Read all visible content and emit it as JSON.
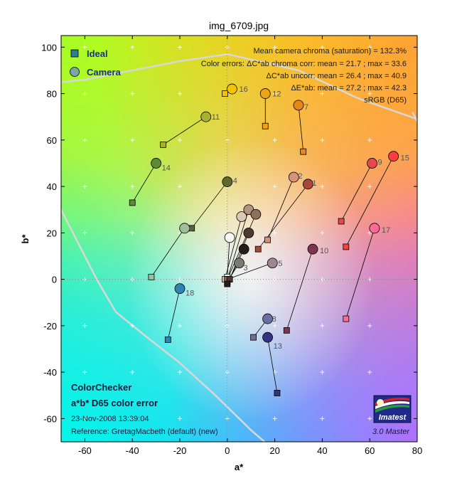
{
  "page_title": "img_6709.jpg",
  "chart_data": {
    "type": "scatter",
    "title": "img_6709.jpg",
    "xlabel": "a*",
    "ylabel": "b*",
    "xlim": [
      -70,
      80
    ],
    "ylim": [
      -70,
      105
    ],
    "xticks": [
      -60,
      -40,
      -20,
      0,
      20,
      40,
      60,
      80
    ],
    "yticks": [
      -60,
      -40,
      -20,
      0,
      20,
      40,
      60,
      80,
      100
    ],
    "grid": "cross-markers",
    "legend": {
      "placement": "top-left",
      "entries": [
        {
          "name": "Ideal",
          "marker": "square",
          "color": "#2a7f97"
        },
        {
          "name": "Camera",
          "marker": "circle",
          "color": "#7aa6a6"
        }
      ]
    },
    "info_lines": [
      "Mean camera chroma (saturation) = 132.3%",
      "Color errors: ΔC*ab chroma corr:  mean = 21.7 ;  max = 33.6",
      "ΔC*ab uncorr:  mean = 26.4 ;  max = 40.9",
      "ΔE*ab:  mean = 27.2 ;  max = 42.3",
      "sRGB (D65)"
    ],
    "gamut_curves": [
      [
        [
          -70,
          85
        ],
        [
          -60,
          86
        ],
        [
          -20,
          94
        ],
        [
          0,
          97
        ],
        [
          30,
          90
        ],
        [
          55,
          78
        ],
        [
          80,
          69
        ]
      ],
      [
        [
          -70,
          30
        ],
        [
          -55,
          0
        ],
        [
          -47,
          -14
        ],
        [
          -35,
          -24
        ],
        [
          -20,
          -36
        ],
        [
          -5,
          -50
        ],
        [
          10,
          -65
        ],
        [
          18,
          -72
        ]
      ],
      [
        [
          78,
          72
        ],
        [
          80,
          68
        ]
      ]
    ],
    "patches": [
      {
        "id": "1",
        "ideal": [
          13,
          13
        ],
        "camera": [
          34,
          41
        ],
        "color": "#a9493c",
        "label_offset": [
          6,
          2
        ]
      },
      {
        "id": "2",
        "ideal": [
          17,
          17
        ],
        "camera": [
          28,
          44
        ],
        "color": "#d9927a",
        "label_offset": [
          6,
          2
        ]
      },
      {
        "id": "3",
        "ideal": [
          0,
          -1
        ],
        "camera": [
          5,
          7
        ],
        "color": "#7b7b72",
        "label_offset": [
          6,
          10
        ]
      },
      {
        "id": "4",
        "ideal": [
          -15,
          22
        ],
        "camera": [
          0,
          42
        ],
        "color": "#5d6a2c",
        "label_offset": [
          8,
          2
        ]
      },
      {
        "id": "5",
        "ideal": [
          0,
          0
        ],
        "camera": [
          19,
          7
        ],
        "color": "#9f8693",
        "label_offset": [
          8,
          4
        ]
      },
      {
        "id": "6",
        "ideal": [
          -32,
          1
        ],
        "camera": [
          -18,
          22
        ],
        "color": "#9fbf9c",
        "label_offset": [
          6,
          4
        ]
      },
      {
        "id": "7",
        "ideal": [
          32,
          55
        ],
        "camera": [
          30,
          75
        ],
        "color": "#e8861b",
        "label_offset": [
          8,
          6
        ]
      },
      {
        "id": "8",
        "ideal": [
          11,
          -25
        ],
        "camera": [
          17,
          -17
        ],
        "color": "#6b6fa0",
        "label_offset": [
          6,
          4
        ]
      },
      {
        "id": "9",
        "ideal": [
          48,
          25
        ],
        "camera": [
          61,
          50
        ],
        "color": "#e8484c",
        "label_offset": [
          8,
          2
        ]
      },
      {
        "id": "10",
        "ideal": [
          25,
          -22
        ],
        "camera": [
          36,
          13
        ],
        "color": "#7d3552",
        "label_offset": [
          10,
          6
        ]
      },
      {
        "id": "11",
        "ideal": [
          -27,
          58
        ],
        "camera": [
          -9,
          70
        ],
        "color": "#a5b233",
        "label_offset": [
          8,
          4
        ]
      },
      {
        "id": "12",
        "ideal": [
          16,
          66
        ],
        "camera": [
          16,
          80
        ],
        "color": "#f0a313",
        "label_offset": [
          10,
          4
        ]
      },
      {
        "id": "13",
        "ideal": [
          21,
          -49
        ],
        "camera": [
          17,
          -25
        ],
        "color": "#353282",
        "label_offset": [
          8,
          16
        ]
      },
      {
        "id": "14",
        "ideal": [
          -40,
          33
        ],
        "camera": [
          -30,
          50
        ],
        "color": "#5d8c32",
        "label_offset": [
          8,
          10
        ]
      },
      {
        "id": "15",
        "ideal": [
          50,
          14
        ],
        "camera": [
          70,
          53
        ],
        "color": "#ff3d3f",
        "label_offset": [
          10,
          6
        ]
      },
      {
        "id": "16",
        "ideal": [
          -1,
          80
        ],
        "camera": [
          2,
          82
        ],
        "color": "#f5c400",
        "label_offset": [
          10,
          4
        ]
      },
      {
        "id": "17",
        "ideal": [
          50,
          -17
        ],
        "camera": [
          62,
          22
        ],
        "color": "#ff6a96",
        "label_offset": [
          10,
          6
        ]
      },
      {
        "id": "18",
        "ideal": [
          -25,
          -26
        ],
        "camera": [
          -20,
          -4
        ],
        "color": "#2f84b4",
        "label_offset": [
          8,
          10
        ]
      },
      {
        "id": "19",
        "ideal": [
          0,
          1
        ],
        "camera": [
          1,
          18
        ],
        "color": "#f7f7f1",
        "label_offset": [
          0,
          0
        ],
        "hide_label": true
      },
      {
        "id": "20",
        "ideal": [
          -1,
          0
        ],
        "camera": [
          6,
          27
        ],
        "color": "#d9c9b6",
        "label_offset": [
          0,
          0
        ],
        "hide_label": true
      },
      {
        "id": "21",
        "ideal": [
          0,
          0
        ],
        "camera": [
          9,
          30
        ],
        "color": "#ae9580",
        "label_offset": [
          0,
          0
        ],
        "hide_label": true
      },
      {
        "id": "22",
        "ideal": [
          0,
          0
        ],
        "camera": [
          12,
          28
        ],
        "color": "#8e705d",
        "label_offset": [
          0,
          0
        ],
        "hide_label": true
      },
      {
        "id": "23",
        "ideal": [
          1,
          0
        ],
        "camera": [
          9,
          20
        ],
        "color": "#4e3a2f",
        "label_offset": [
          0,
          0
        ],
        "hide_label": true
      },
      {
        "id": "24",
        "ideal": [
          0,
          -2
        ],
        "camera": [
          7,
          13
        ],
        "color": "#271d18",
        "label_offset": [
          0,
          0
        ],
        "hide_label": true
      }
    ]
  },
  "footer": {
    "line1": "ColorChecker",
    "line2": "a*b* D65 color error",
    "timestamp": "23-Nov-2008 13:39:04",
    "reference": "Reference: GretagMacbeth (default) (new)",
    "logo_text": "Imatest",
    "version": "3.0  Master"
  }
}
